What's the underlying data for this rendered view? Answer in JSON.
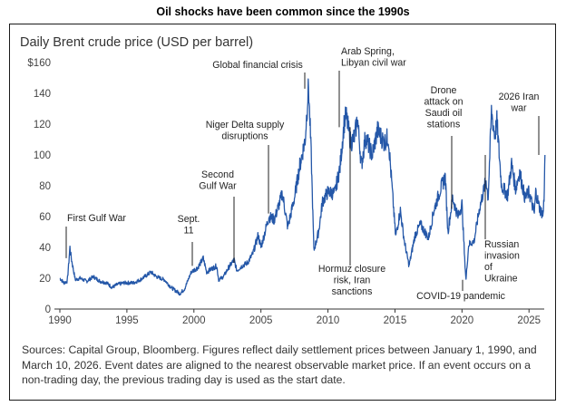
{
  "outer_title": "Oil shocks have been common since the 1990s",
  "chart_title": "Daily Brent crude price (USD per barrel)",
  "sources_text": "Sources: Capital Group, Bloomberg. Figures reflect daily settlement prices between January 1, 1990, and March 10, 2026. Event dates are aligned to the nearest observable market price. If an event occurs on a non-trading day, the previous trading day is used as the start date.",
  "colors": {
    "line": "#2457a8",
    "annotation": "#222222",
    "axis": "#333333"
  },
  "chart_data": {
    "type": "line",
    "title": "Daily Brent crude price (USD per barrel)",
    "xlabel": "",
    "ylabel": "USD per barrel",
    "xlim": [
      1990,
      2026.2
    ],
    "ylim": [
      0,
      160
    ],
    "x_ticks": [
      1990,
      1995,
      2000,
      2005,
      2010,
      2015,
      2020,
      2025
    ],
    "x_tick_labels": [
      "1990",
      "1995",
      "2000",
      "2005",
      "2010",
      "2015",
      "2020",
      "2025"
    ],
    "y_ticks": [
      0,
      20,
      40,
      60,
      80,
      100,
      120,
      140,
      160
    ],
    "y_tick_labels": [
      "0",
      "20",
      "40",
      "60",
      "80",
      "100",
      "120",
      "140",
      "$160"
    ],
    "series": [
      {
        "name": "Brent crude",
        "points": [
          [
            1990.0,
            20
          ],
          [
            1990.3,
            17
          ],
          [
            1990.55,
            18
          ],
          [
            1990.65,
            28
          ],
          [
            1990.75,
            40
          ],
          [
            1990.85,
            33
          ],
          [
            1991.0,
            26
          ],
          [
            1991.15,
            19
          ],
          [
            1991.5,
            20
          ],
          [
            1992.0,
            18
          ],
          [
            1992.5,
            21
          ],
          [
            1993.0,
            18
          ],
          [
            1993.5,
            17
          ],
          [
            1993.9,
            14
          ],
          [
            1994.3,
            16
          ],
          [
            1994.8,
            17
          ],
          [
            1995.5,
            17
          ],
          [
            1996.0,
            19
          ],
          [
            1996.8,
            24
          ],
          [
            1997.2,
            21
          ],
          [
            1997.8,
            19
          ],
          [
            1998.3,
            14
          ],
          [
            1998.95,
            10
          ],
          [
            1999.3,
            13
          ],
          [
            1999.8,
            24
          ],
          [
            2000.3,
            27
          ],
          [
            2000.7,
            33
          ],
          [
            2000.95,
            24
          ],
          [
            2001.3,
            26
          ],
          [
            2001.7,
            28
          ],
          [
            2001.85,
            19
          ],
          [
            2002.2,
            21
          ],
          [
            2002.6,
            27
          ],
          [
            2003.0,
            32
          ],
          [
            2003.2,
            25
          ],
          [
            2003.6,
            28
          ],
          [
            2004.0,
            30
          ],
          [
            2004.4,
            36
          ],
          [
            2004.8,
            48
          ],
          [
            2005.0,
            40
          ],
          [
            2005.6,
            60
          ],
          [
            2006.0,
            58
          ],
          [
            2006.6,
            75
          ],
          [
            2007.0,
            53
          ],
          [
            2007.5,
            72
          ],
          [
            2007.9,
            93
          ],
          [
            2008.3,
            110
          ],
          [
            2008.55,
            145
          ],
          [
            2008.75,
            100
          ],
          [
            2008.95,
            38
          ],
          [
            2009.3,
            50
          ],
          [
            2009.6,
            70
          ],
          [
            2010.0,
            76
          ],
          [
            2010.5,
            75
          ],
          [
            2010.9,
            92
          ],
          [
            2011.2,
            120
          ],
          [
            2011.35,
            126
          ],
          [
            2011.7,
            108
          ],
          [
            2012.0,
            112
          ],
          [
            2012.2,
            124
          ],
          [
            2012.5,
            93
          ],
          [
            2012.8,
            112
          ],
          [
            2013.3,
            100
          ],
          [
            2013.7,
            116
          ],
          [
            2014.2,
            108
          ],
          [
            2014.5,
            112
          ],
          [
            2014.9,
            65
          ],
          [
            2015.05,
            47
          ],
          [
            2015.4,
            64
          ],
          [
            2015.7,
            44
          ],
          [
            2016.05,
            28
          ],
          [
            2016.5,
            48
          ],
          [
            2016.9,
            55
          ],
          [
            2017.5,
            46
          ],
          [
            2017.9,
            64
          ],
          [
            2018.4,
            78
          ],
          [
            2018.75,
            86
          ],
          [
            2018.95,
            50
          ],
          [
            2019.3,
            72
          ],
          [
            2019.7,
            60
          ],
          [
            2020.0,
            68
          ],
          [
            2020.2,
            32
          ],
          [
            2020.3,
            19
          ],
          [
            2020.5,
            42
          ],
          [
            2020.9,
            44
          ],
          [
            2021.3,
            65
          ],
          [
            2021.8,
            84
          ],
          [
            2021.95,
            72
          ],
          [
            2022.2,
            128
          ],
          [
            2022.45,
            112
          ],
          [
            2022.6,
            122
          ],
          [
            2022.95,
            80
          ],
          [
            2023.4,
            74
          ],
          [
            2023.7,
            94
          ],
          [
            2024.0,
            78
          ],
          [
            2024.3,
            89
          ],
          [
            2024.7,
            72
          ],
          [
            2025.0,
            76
          ],
          [
            2025.4,
            62
          ],
          [
            2025.5,
            76
          ],
          [
            2025.8,
            65
          ],
          [
            2026.05,
            61
          ],
          [
            2026.12,
            72
          ],
          [
            2026.19,
            100
          ]
        ]
      }
    ],
    "annotations": [
      {
        "id": "gulf-war",
        "lines": [
          "First Gulf War"
        ],
        "x": 1990.7,
        "y": 40
      },
      {
        "id": "sept-11",
        "lines": [
          "Sept.",
          "11"
        ],
        "x": 2000.7,
        "y": 28
      },
      {
        "id": "second-gulf-war",
        "lines": [
          "Second",
          "Gulf War"
        ],
        "x": 2003.2,
        "y": 30
      },
      {
        "id": "niger-delta",
        "lines": [
          "Niger Delta supply",
          "disruptions"
        ],
        "x": 2006.0,
        "y": 63
      },
      {
        "id": "financial-crisis",
        "lines": [
          "Global financial crisis"
        ],
        "x": 2008.55,
        "y": 145
      },
      {
        "id": "arab-spring",
        "lines": [
          "Arab Spring,",
          "Libyan civil war"
        ],
        "x": 2011.2,
        "y": 112
      },
      {
        "id": "hormuz",
        "lines": [
          "Hormuz closure",
          "risk, Iran",
          "sanctions"
        ],
        "x": 2011.85,
        "y": 115
      },
      {
        "id": "drone-attack",
        "lines": [
          "Drone",
          "attack on",
          "Saudi oil",
          "stations"
        ],
        "x": 2019.7,
        "y": 66
      },
      {
        "id": "covid",
        "lines": [
          "COVID-19 pandemic"
        ],
        "x": 2020.3,
        "y": 19
      },
      {
        "id": "russia-ukraine",
        "lines": [
          "Russian",
          "invasion",
          "of",
          "Ukraine"
        ],
        "x": 2022.15,
        "y": 100
      },
      {
        "id": "iran-war",
        "lines": [
          "2026 Iran",
          "war"
        ],
        "x": 2026.19,
        "y": 100
      }
    ]
  }
}
